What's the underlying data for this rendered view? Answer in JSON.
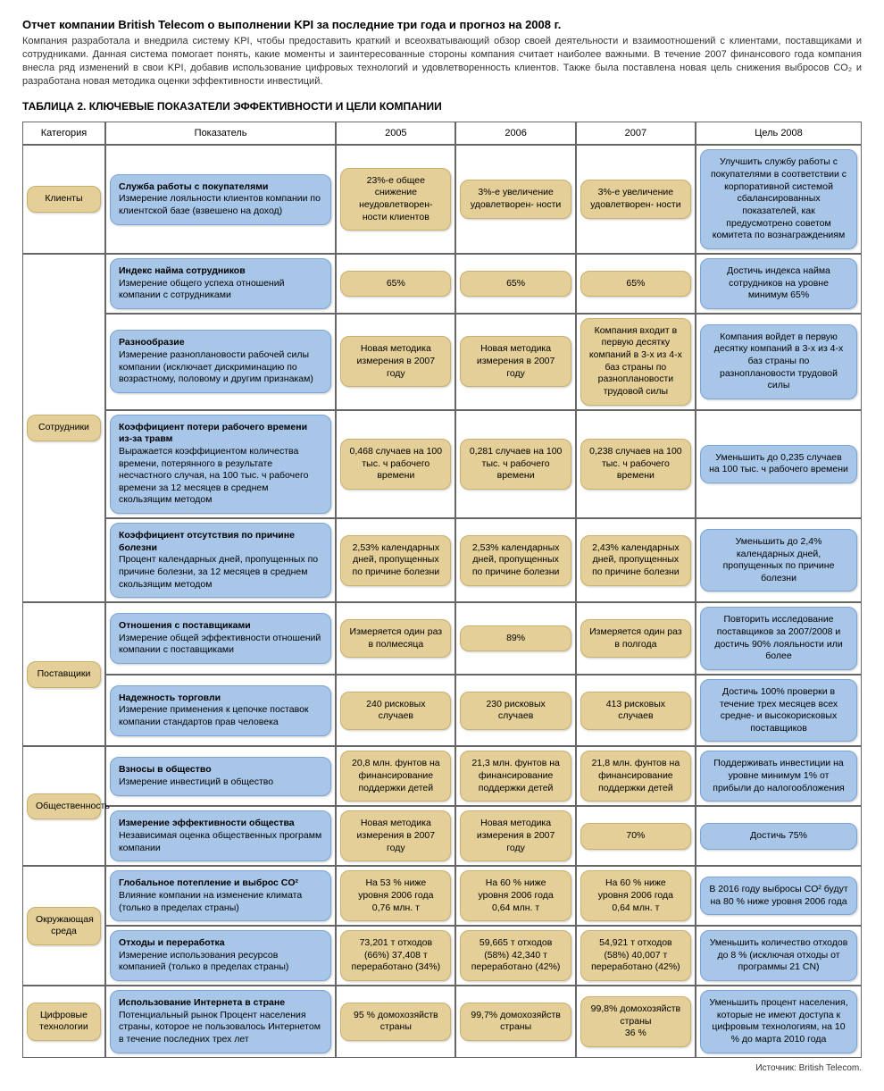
{
  "colors": {
    "blue_bg": "#a8c6e8",
    "blue_border": "#7ba5d6",
    "tan_bg": "#e3cf97",
    "tan_border": "#c9b06e",
    "grid": "#666666",
    "text": "#000000"
  },
  "title": "Отчет компании British Telecom о выполнении KPI за последние три года и прогноз на 2008 г.",
  "intro": "Компания разработала и внедрила систему KPI, чтобы предоставить краткий и всеохватывающий обзор своей деятельности и взаимоотношений с клиентами, поставщиками и сотрудниками. Данная система помогает понять, какие моменты и заинтересованные стороны компания считает наиболее важными. В течение 2007 финансового года компания внесла ряд изменений в свои KPI, добавив использование цифровых технологий и удовлетворенность клиентов. Также была поставлена новая цель снижения выбросов CO₂ и разработана новая методика оценки эффективности инвестиций.",
  "table_caption": "ТАБЛИЦА 2.  КЛЮЧЕВЫЕ ПОКАЗАТЕЛИ ЭФФЕКТИВНОСТИ И ЦЕЛИ КОМПАНИИ",
  "headers": {
    "category": "Категория",
    "indicator": "Показатель",
    "y2005": "2005",
    "y2006": "2006",
    "y2007": "2007",
    "goal2008": "Цель 2008"
  },
  "categories": [
    {
      "name": "Клиенты",
      "rowspan": 1
    },
    {
      "name": "Сотрудники",
      "rowspan": 4
    },
    {
      "name": "Поставщики",
      "rowspan": 2
    },
    {
      "name": "Общественность",
      "rowspan": 2
    },
    {
      "name": "Окружающая среда",
      "rowspan": 2
    },
    {
      "name": "Цифровые технологии",
      "rowspan": 1
    }
  ],
  "rows": [
    {
      "ind_title": "Служба работы с покупателями",
      "ind_desc": "Измерение лояльности клиентов компании по клиентской базе (взвешено на доход)",
      "y2005": "23%-е общее снижение неудовлетворен- ности клиентов",
      "y2006": "3%-е увеличение удовлетворен- ности",
      "y2007": "3%-е увеличение удовлетворен- ности",
      "goal": "Улучшить службу работы с покупателями в соответствии с корпоративной системой сбалансированных показателей, как предусмотрено советом комитета по вознаграждениям"
    },
    {
      "ind_title": "Индекс найма сотрудников",
      "ind_desc": "Измерение общего успеха отношений компании с сотрудниками",
      "y2005": "65%",
      "y2006": "65%",
      "y2007": "65%",
      "goal": "Достичь индекса найма сотрудников на уровне минимум 65%"
    },
    {
      "ind_title": "Разнообразие",
      "ind_desc": "Измерение разноплановости рабочей силы компании (исключает дискриминацию по возрастному, половому и другим признакам)",
      "y2005": "Новая методика измерения в 2007 году",
      "y2006": "Новая методика измерения в 2007 году",
      "y2007": "Компания входит в первую десятку компаний в 3-х из 4-х баз страны по разноплановости трудовой силы",
      "goal": "Компания войдет в первую десятку компаний в 3-х из 4-х баз страны по разноплановости трудовой силы"
    },
    {
      "ind_title": "Коэффициент потери рабочего времени из-за травм",
      "ind_desc": "Выражается коэффициентом количества времени, потерянного в результате несчастного случая, на 100 тыс. ч рабочего времени за 12 месяцев в среднем скользящим методом",
      "y2005": "0,468 случаев на 100 тыс. ч рабочего времени",
      "y2006": "0,281 случаев на 100 тыс. ч рабочего времени",
      "y2007": "0,238 случаев на 100 тыс. ч рабочего времени",
      "goal": "Уменьшить до 0,235 случаев на 100 тыс. ч рабочего времени"
    },
    {
      "ind_title": "Коэффициент отсутствия по причине болезни",
      "ind_desc": "Процент календарных дней, пропущенных по причине болезни, за 12 месяцев в среднем скользящим методом",
      "y2005": "2,53% календарных дней, пропущенных по причине болезни",
      "y2006": "2,53% календарных дней, пропущенных по причине болезни",
      "y2007": "2,43% календарных дней, пропущенных по причине болезни",
      "goal": "Уменьшить до 2,4% календарных дней, пропущенных по причине болезни"
    },
    {
      "ind_title": "Отношения с поставщиками",
      "ind_desc": "Измерение общей эффективности отношений компании с поставщиками",
      "y2005": "Измеряется один раз в полмесяца",
      "y2006": "89%",
      "y2007": "Измеряется один раз в полгода",
      "goal": "Повторить исследование поставщиков за 2007/2008 и достичь 90% лояльности или более"
    },
    {
      "ind_title": "Надежность торговли",
      "ind_desc": "Измерение применения к цепочке поставок компании стандартов прав человека",
      "y2005": "240 рисковых случаев",
      "y2006": "230 рисковых случаев",
      "y2007": "413 рисковых случаев",
      "goal": "Достичь 100% проверки в течение трех месяцев всех средне- и высокорисковых поставщиков"
    },
    {
      "ind_title": "Взносы в общество",
      "ind_desc": "Измерение инвестиций в общество",
      "y2005": "20,8 млн. фунтов на финансирование поддержки детей",
      "y2006": "21,3 млн. фунтов на финансирование поддержки детей",
      "y2007": "21,8 млн. фунтов на финансирование поддержки детей",
      "goal": "Поддерживать инвестиции на уровне минимум 1% от прибыли до налогообложения"
    },
    {
      "ind_title": "Измерение эффективности общества",
      "ind_desc": "Независимая оценка общественных программ компании",
      "y2005": "Новая методика измерения в 2007 году",
      "y2006": "Новая методика измерения в 2007 году",
      "y2007": "70%",
      "goal": "Достичь 75%"
    },
    {
      "ind_title": "Глобальное потепление и выброс CO²",
      "ind_desc": "Влияние компании на изменение климата (только в пределах страны)",
      "y2005": "На 53 % ниже уровня 2006 года 0,76 млн. т",
      "y2006": "На 60 % ниже уровня 2006 года 0,64 млн. т",
      "y2007": "На 60 % ниже уровня 2006 года 0,64 млн. т",
      "goal": "В 2016 году выбросы CO² будут на 80 % ниже уровня 2006 года"
    },
    {
      "ind_title": "Отходы и переработка",
      "ind_desc": "Измерение использования ресурсов компанией (только в пределах страны)",
      "y2005": "73,201 т отходов (66%) 37,408 т переработано (34%)",
      "y2006": "59,665 т отходов (58%) 42,340 т переработано (42%)",
      "y2007": "54,921 т отходов (58%) 40,007 т переработано (42%)",
      "goal": "Уменьшить количество отходов до 8 % (исключая отходы от программы 21 CN)"
    },
    {
      "ind_title": "Использование Интернета в стране",
      "ind_desc": "Потенциальный рынок\nПроцент населения страны, которое не пользовалось Интернетом в течение последних трех лет",
      "y2005": "95 % домохозяйств страны",
      "y2006": "99,7% домохозяйств страны",
      "y2007": "99,8% домохозяйств страны\n36 %",
      "goal": "Уменьшить процент населения, которые не имеют доступа к цифровым технологиям, на 10 % до марта 2010 года"
    }
  ],
  "source": "Источник: British Telecom."
}
